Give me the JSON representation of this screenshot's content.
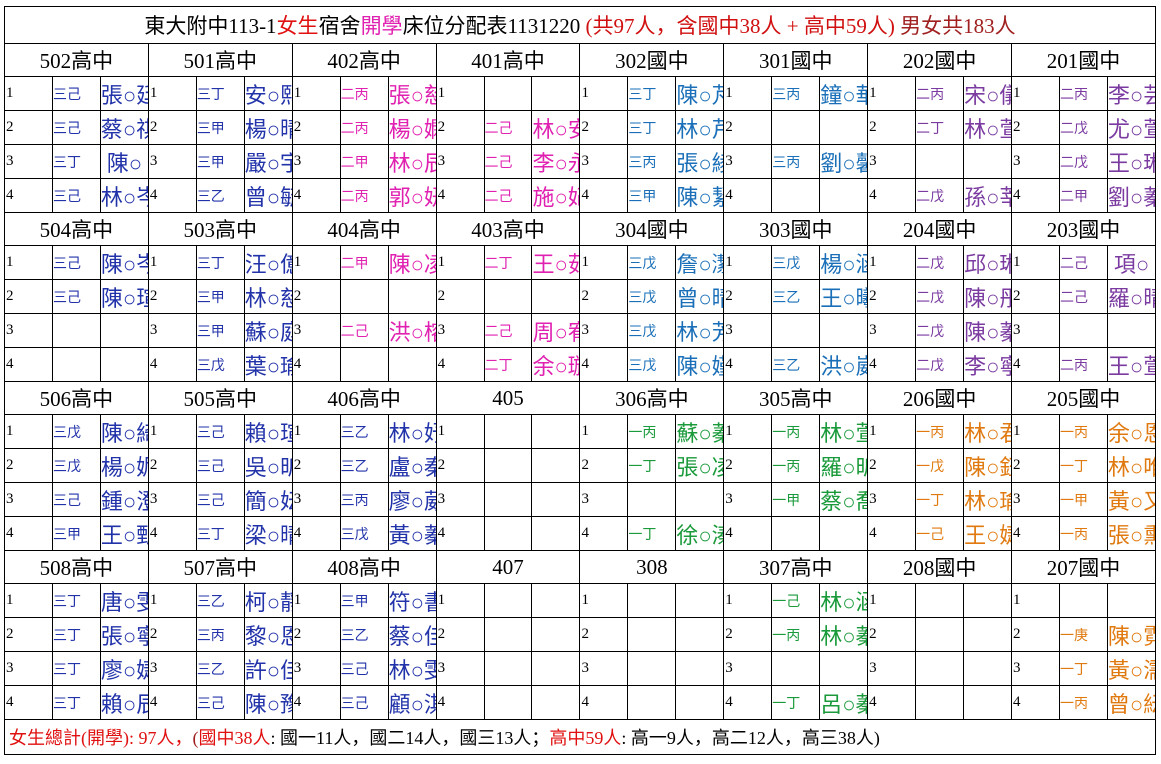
{
  "header": {
    "title": [
      {
        "text": "東大附中113-1",
        "color": "#000000"
      },
      {
        "text": "女生",
        "color": "#e01010"
      },
      {
        "text": "宿舍",
        "color": "#000000"
      },
      {
        "text": "開學",
        "color": "#e020b0"
      },
      {
        "text": "床位分配表1131220 ",
        "color": "#000000"
      },
      {
        "text": "(共97人，含國中38人 + 高中59人)",
        "color": "#d01010"
      },
      {
        "text": " 男女共183人",
        "color": "#a02020"
      }
    ]
  },
  "blocks": [
    {
      "rooms": [
        {
          "name": "502高中",
          "color": "#2233aa",
          "beds": [
            {
              "no": "1",
              "class": "三己",
              "name": "張○廷"
            },
            {
              "no": "2",
              "class": "三己",
              "name": "蔡○祺"
            },
            {
              "no": "3",
              "class": "三丁",
              "name": "陳○"
            },
            {
              "no": "4",
              "class": "三己",
              "name": "林○岑"
            }
          ]
        },
        {
          "name": "501高中",
          "color": "#2233aa",
          "beds": [
            {
              "no": "1",
              "class": "三丁",
              "name": "安○熙"
            },
            {
              "no": "2",
              "class": "三甲",
              "name": "楊○晴"
            },
            {
              "no": "3",
              "class": "三甲",
              "name": "嚴○宇"
            },
            {
              "no": "4",
              "class": "三乙",
              "name": "曾○毓"
            }
          ]
        },
        {
          "name": "402高中",
          "color": "#e020b0",
          "beds": [
            {
              "no": "1",
              "class": "二丙",
              "name": "張○慈"
            },
            {
              "no": "2",
              "class": "二丙",
              "name": "楊○嫻"
            },
            {
              "no": "3",
              "class": "二甲",
              "name": "林○辰"
            },
            {
              "no": "4",
              "class": "二丙",
              "name": "郭○妍"
            }
          ]
        },
        {
          "name": "401高中",
          "color": "#e020b0",
          "beds": [
            {
              "no": "1"
            },
            {
              "no": "2",
              "class": "二己",
              "name": "林○安"
            },
            {
              "no": "3",
              "class": "二己",
              "name": "李○永"
            },
            {
              "no": "4",
              "class": "二己",
              "name": "施○妃"
            }
          ]
        },
        {
          "name": "302國中",
          "color": "#1a6fb8",
          "beds": [
            {
              "no": "1",
              "class": "三丁",
              "name": "陳○芃"
            },
            {
              "no": "2",
              "class": "三丁",
              "name": "林○芹"
            },
            {
              "no": "3",
              "class": "三丙",
              "name": "張○綾"
            },
            {
              "no": "4",
              "class": "三甲",
              "name": "陳○絜"
            }
          ]
        },
        {
          "name": "301國中",
          "color": "#1a6fb8",
          "beds": [
            {
              "no": "1",
              "class": "三丙",
              "name": "鐘○華"
            },
            {
              "no": "2"
            },
            {
              "no": "3",
              "class": "三丙",
              "name": "劉○馨"
            },
            {
              "no": "4"
            }
          ]
        },
        {
          "name": "202國中",
          "color": "#7a3aa0",
          "beds": [
            {
              "no": "1",
              "class": "二丙",
              "name": "宋○儀"
            },
            {
              "no": "2",
              "class": "二丁",
              "name": "林○萱"
            },
            {
              "no": "3"
            },
            {
              "no": "4",
              "class": "二戊",
              "name": "孫○莘"
            }
          ]
        },
        {
          "name": "201國中",
          "color": "#7a3aa0",
          "beds": [
            {
              "no": "1",
              "class": "二丙",
              "name": "李○芸"
            },
            {
              "no": "2",
              "class": "二戊",
              "name": "尤○萱"
            },
            {
              "no": "3",
              "class": "二戊",
              "name": "王○琳"
            },
            {
              "no": "4",
              "class": "二甲",
              "name": "劉○蓁"
            }
          ]
        }
      ]
    },
    {
      "rooms": [
        {
          "name": "504高中",
          "color": "#2233aa",
          "beds": [
            {
              "no": "1",
              "class": "三己",
              "name": "陳○岑"
            },
            {
              "no": "2",
              "class": "三己",
              "name": "陳○瑄"
            },
            {
              "no": "3"
            },
            {
              "no": "4"
            }
          ]
        },
        {
          "name": "503高中",
          "color": "#2233aa",
          "beds": [
            {
              "no": "1",
              "class": "三丁",
              "name": "汪○億"
            },
            {
              "no": "2",
              "class": "三甲",
              "name": "林○慈"
            },
            {
              "no": "3",
              "class": "三甲",
              "name": "蘇○庭"
            },
            {
              "no": "4",
              "class": "三戊",
              "name": "葉○瑜"
            }
          ]
        },
        {
          "name": "404高中",
          "color": "#e020b0",
          "beds": [
            {
              "no": "1",
              "class": "二甲",
              "name": "陳○凌"
            },
            {
              "no": "2"
            },
            {
              "no": "3",
              "class": "二己",
              "name": "洪○榕"
            },
            {
              "no": "4"
            }
          ]
        },
        {
          "name": "403高中",
          "color": "#e020b0",
          "beds": [
            {
              "no": "1",
              "class": "二丁",
              "name": "王○茹"
            },
            {
              "no": "2"
            },
            {
              "no": "3",
              "class": "二己",
              "name": "周○宥"
            },
            {
              "no": "4",
              "class": "二丁",
              "name": "余○璇"
            }
          ]
        },
        {
          "name": "304國中",
          "color": "#1a6fb8",
          "beds": [
            {
              "no": "1",
              "class": "三戊",
              "name": "詹○潔"
            },
            {
              "no": "2",
              "class": "三戊",
              "name": "曾○晴"
            },
            {
              "no": "3",
              "class": "三戊",
              "name": "林○芳"
            },
            {
              "no": "4",
              "class": "三戊",
              "name": "陳○嫤"
            }
          ]
        },
        {
          "name": "303國中",
          "color": "#1a6fb8",
          "beds": [
            {
              "no": "1",
              "class": "三戊",
              "name": "楊○涵"
            },
            {
              "no": "2",
              "class": "三乙",
              "name": "王○曦"
            },
            {
              "no": "3"
            },
            {
              "no": "4",
              "class": "三乙",
              "name": "洪○崴"
            }
          ]
        },
        {
          "name": "204國中",
          "color": "#7a3aa0",
          "beds": [
            {
              "no": "1",
              "class": "二戊",
              "name": "邱○琳"
            },
            {
              "no": "2",
              "class": "二戊",
              "name": "陳○彤"
            },
            {
              "no": "3",
              "class": "二戊",
              "name": "陳○蓁"
            },
            {
              "no": "4",
              "class": "二戊",
              "name": "李○寧"
            }
          ]
        },
        {
          "name": "203國中",
          "color": "#7a3aa0",
          "beds": [
            {
              "no": "1",
              "class": "二己",
              "name": "項○"
            },
            {
              "no": "2",
              "class": "二己",
              "name": "羅○晴"
            },
            {
              "no": "3"
            },
            {
              "no": "4",
              "class": "二丙",
              "name": "王○萱"
            }
          ]
        }
      ]
    },
    {
      "rooms": [
        {
          "name": "506高中",
          "color": "#2233aa",
          "beds": [
            {
              "no": "1",
              "class": "三戊",
              "name": "陳○綺"
            },
            {
              "no": "2",
              "class": "三戊",
              "name": "楊○妮"
            },
            {
              "no": "3",
              "class": "三己",
              "name": "鍾○澄"
            },
            {
              "no": "4",
              "class": "三甲",
              "name": "王○甄"
            }
          ]
        },
        {
          "name": "505高中",
          "color": "#2233aa",
          "beds": [
            {
              "no": "1",
              "class": "三己",
              "name": "賴○瑄"
            },
            {
              "no": "2",
              "class": "三己",
              "name": "吳○昕"
            },
            {
              "no": "3",
              "class": "三己",
              "name": "簡○妘"
            },
            {
              "no": "4",
              "class": "三丁",
              "name": "梁○晴"
            }
          ]
        },
        {
          "name": "406高中",
          "color": "#2233aa",
          "beds": [
            {
              "no": "1",
              "class": "三乙",
              "name": "林○妤"
            },
            {
              "no": "2",
              "class": "三乙",
              "name": "盧○秦"
            },
            {
              "no": "3",
              "class": "三丙",
              "name": "廖○葳"
            },
            {
              "no": "4",
              "class": "三戊",
              "name": "黃○蓁"
            }
          ]
        },
        {
          "name": "405",
          "color": "#000000",
          "beds": [
            {
              "no": "1"
            },
            {
              "no": "2"
            },
            {
              "no": "3"
            },
            {
              "no": "4"
            }
          ]
        },
        {
          "name": "306高中",
          "color": "#1a9a3a",
          "beds": [
            {
              "no": "1",
              "class": "一丙",
              "name": "蘇○蓁"
            },
            {
              "no": "2",
              "class": "一丁",
              "name": "張○凌"
            },
            {
              "no": "3"
            },
            {
              "no": "4",
              "class": "一丁",
              "name": "徐○溱"
            }
          ]
        },
        {
          "name": "305高中",
          "color": "#1a9a3a",
          "beds": [
            {
              "no": "1",
              "class": "一丙",
              "name": "林○萱"
            },
            {
              "no": "2",
              "class": "一丙",
              "name": "羅○昕"
            },
            {
              "no": "3",
              "class": "一甲",
              "name": "蔡○喬"
            },
            {
              "no": "4"
            }
          ]
        },
        {
          "name": "206國中",
          "color": "#e07a10",
          "beds": [
            {
              "no": "1",
              "class": "一丙",
              "name": "林○君"
            },
            {
              "no": "2",
              "class": "一戊",
              "name": "陳○鈺"
            },
            {
              "no": "3",
              "class": "一丁",
              "name": "林○瑜"
            },
            {
              "no": "4",
              "class": "一己",
              "name": "王○婕"
            }
          ]
        },
        {
          "name": "205國中",
          "color": "#e07a10",
          "beds": [
            {
              "no": "1",
              "class": "一丙",
              "name": "余○恩"
            },
            {
              "no": "2",
              "class": "一丁",
              "name": "林○唯"
            },
            {
              "no": "3",
              "class": "一甲",
              "name": "黃○又"
            },
            {
              "no": "4",
              "class": "一丙",
              "name": "張○熏"
            }
          ]
        }
      ]
    },
    {
      "rooms": [
        {
          "name": "508高中",
          "color": "#2233aa",
          "beds": [
            {
              "no": "1",
              "class": "三丁",
              "name": "唐○雯"
            },
            {
              "no": "2",
              "class": "三丁",
              "name": "張○寧"
            },
            {
              "no": "3",
              "class": "三丁",
              "name": "廖○婕"
            },
            {
              "no": "4",
              "class": "三丁",
              "name": "賴○辰"
            }
          ]
        },
        {
          "name": "507高中",
          "color": "#2233aa",
          "beds": [
            {
              "no": "1",
              "class": "三乙",
              "name": "柯○靜"
            },
            {
              "no": "2",
              "class": "三丙",
              "name": "黎○恩"
            },
            {
              "no": "3",
              "class": "三乙",
              "name": "許○佳"
            },
            {
              "no": "4",
              "class": "三己",
              "name": "陳○豫"
            }
          ]
        },
        {
          "name": "408高中",
          "color": "#2233aa",
          "beds": [
            {
              "no": "1",
              "class": "三甲",
              "name": "符○書"
            },
            {
              "no": "2",
              "class": "三乙",
              "name": "蔡○佳"
            },
            {
              "no": "3",
              "class": "三己",
              "name": "林○雯"
            },
            {
              "no": "4",
              "class": "三己",
              "name": "顧○淇"
            }
          ]
        },
        {
          "name": "407",
          "color": "#000000",
          "beds": [
            {
              "no": "1"
            },
            {
              "no": "2"
            },
            {
              "no": "3"
            },
            {
              "no": "4"
            }
          ]
        },
        {
          "name": "308",
          "color": "#000000",
          "beds": [
            {
              "no": "1"
            },
            {
              "no": "2"
            },
            {
              "no": "3"
            },
            {
              "no": "4"
            }
          ]
        },
        {
          "name": "307高中",
          "color": "#1a9a3a",
          "beds": [
            {
              "no": "1",
              "class": "一己",
              "name": "林○涵"
            },
            {
              "no": "2",
              "class": "一丙",
              "name": "林○蓁"
            },
            {
              "no": "3"
            },
            {
              "no": "4",
              "class": "一丁",
              "name": "呂○蓁"
            }
          ]
        },
        {
          "name": "208國中",
          "color": "#000000",
          "beds": [
            {
              "no": "1"
            },
            {
              "no": "2"
            },
            {
              "no": "3"
            },
            {
              "no": "4"
            }
          ]
        },
        {
          "name": "207國中",
          "color": "#e07a10",
          "beds": [
            {
              "no": "1"
            },
            {
              "no": "2",
              "class": "一庚",
              "name": "陳○霓"
            },
            {
              "no": "3",
              "class": "一丁",
              "name": "黃○濡"
            },
            {
              "no": "4",
              "class": "一丙",
              "name": "曾○紜"
            }
          ]
        }
      ]
    }
  ],
  "footer": {
    "parts": [
      {
        "text": "女生總計(開學): 97人，",
        "color": "#e01010"
      },
      {
        "text": "(",
        "color": "#a02020"
      },
      {
        "text": "國中38人",
        "color": "#e01010"
      },
      {
        "text": ": 國一11人，國二14人，國三13人；",
        "color": "#000000"
      },
      {
        "text": "高中59人",
        "color": "#e01010"
      },
      {
        "text": ": 高一9人，高二12人，高三38人)",
        "color": "#000000"
      }
    ]
  }
}
